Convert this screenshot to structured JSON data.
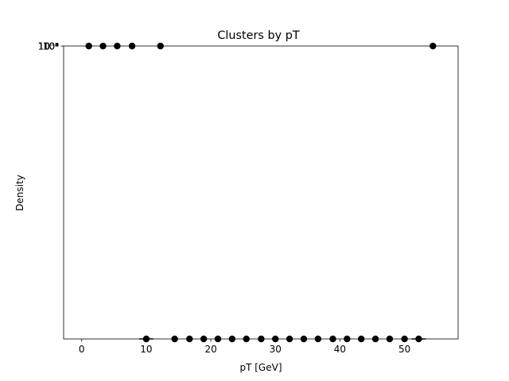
{
  "chart_data": {
    "type": "scatter",
    "title": "Clusters by pT",
    "xlabel": "pT [GeV]",
    "ylabel": "Density",
    "xlim": [
      -2.8,
      58.3
    ],
    "x_ticks": [
      0,
      10,
      20,
      30,
      40,
      50
    ],
    "x_tick_labels": [
      "0",
      "10",
      "20",
      "30",
      "40",
      "50"
    ],
    "y_scale": "log",
    "y_tick_labels_overlapping": [
      "10⁻⁸",
      "10⁻⁶",
      "10⁻⁴",
      "10⁻²",
      "10⁰",
      "10²"
    ],
    "grid": false,
    "marker_color": "#000000",
    "points_top_row": [
      1.1,
      3.3,
      5.5,
      7.8,
      12.2,
      54.4
    ],
    "points_bottom_row": [
      10.0,
      14.4,
      16.7,
      18.9,
      21.1,
      23.3,
      25.5,
      27.8,
      30.0,
      32.2,
      34.4,
      36.6,
      38.9,
      41.1,
      43.3,
      45.5,
      47.7,
      50.0,
      52.2
    ],
    "error_bars_bottom_row": [
      {
        "x": 10.0,
        "xerr": 1.1
      },
      {
        "x": 52.2,
        "xerr": 1.1
      }
    ]
  }
}
